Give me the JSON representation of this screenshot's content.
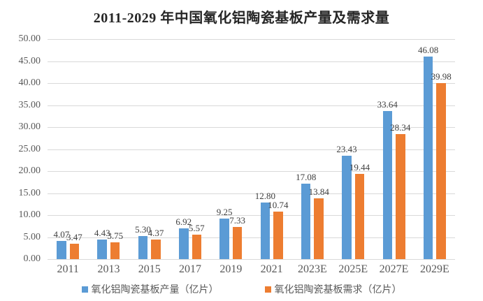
{
  "chart_data": {
    "type": "bar",
    "title": "2011-2029 年中国氧化铝陶瓷基板产量及需求量",
    "categories": [
      "2011",
      "2013",
      "2015",
      "2017",
      "2019",
      "2021",
      "2023E",
      "2025E",
      "2027E",
      "2029E"
    ],
    "series": [
      {
        "name": "氧化铝陶瓷基板产量（亿片）",
        "color": "#5B9BD5",
        "values": [
          4.07,
          4.43,
          5.3,
          6.92,
          9.25,
          12.8,
          17.08,
          23.43,
          33.64,
          46.08
        ]
      },
      {
        "name": "氧化铝陶瓷基板需求（亿片）",
        "color": "#ED7D31",
        "values": [
          3.47,
          3.75,
          4.37,
          5.57,
          7.33,
          10.74,
          13.84,
          19.44,
          28.34,
          39.98
        ]
      }
    ],
    "ylim": [
      0,
      50
    ],
    "ytick_step": 5,
    "ytick_decimals": 2,
    "value_label_decimals": 2,
    "grid": true,
    "legend_position": "bottom"
  },
  "colors": {
    "grid": "#D9D9D9",
    "axis_text": "#595959",
    "value_text": "#404040",
    "title_text": "#262626",
    "background": "#FFFFFF"
  }
}
